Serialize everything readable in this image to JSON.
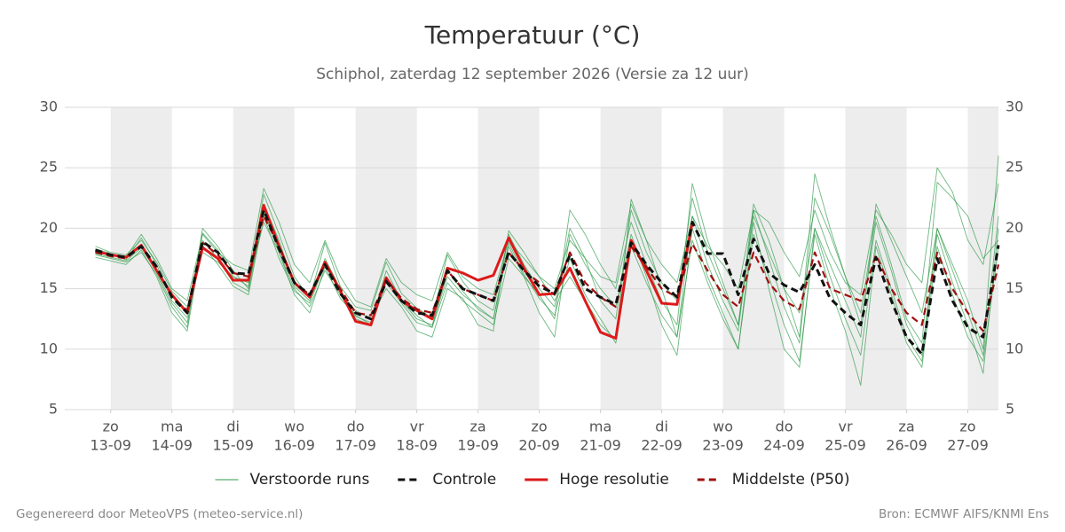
{
  "chart_data": {
    "type": "line",
    "title": "Temperatuur (°C)",
    "subtitle": "Schiphol, zaterdag 12 september 2026 (Versie za 12 uur)",
    "footer_left": "Gegenereerd door MeteoVPS (meteo-service.nl)",
    "footer_right": "Bron: ECMWF AIFS/KNMI Ens",
    "xlim": [
      -2,
      59
    ],
    "xticks": [
      {
        "value": 1,
        "label": [
          "zo",
          "13-09"
        ]
      },
      {
        "value": 5,
        "label": [
          "ma",
          "14-09"
        ]
      },
      {
        "value": 9,
        "label": [
          "di",
          "15-09"
        ]
      },
      {
        "value": 13,
        "label": [
          "wo",
          "16-09"
        ]
      },
      {
        "value": 17,
        "label": [
          "do",
          "17-09"
        ]
      },
      {
        "value": 21,
        "label": [
          "vr",
          "18-09"
        ]
      },
      {
        "value": 25,
        "label": [
          "za",
          "19-09"
        ]
      },
      {
        "value": 29,
        "label": [
          "zo",
          "20-09"
        ]
      },
      {
        "value": 33,
        "label": [
          "ma",
          "21-09"
        ]
      },
      {
        "value": 37,
        "label": [
          "di",
          "22-09"
        ]
      },
      {
        "value": 41,
        "label": [
          "wo",
          "23-09"
        ]
      },
      {
        "value": 45,
        "label": [
          "do",
          "24-09"
        ]
      },
      {
        "value": 49,
        "label": [
          "vr",
          "25-09"
        ]
      },
      {
        "value": 53,
        "label": [
          "za",
          "26-09"
        ]
      },
      {
        "value": 57,
        "label": [
          "zo",
          "27-09"
        ]
      }
    ],
    "ylim": [
      5,
      30
    ],
    "yticks": [
      5,
      10,
      15,
      20,
      25,
      30
    ],
    "grid": true,
    "series": [
      {
        "name": "Verstoorde runs",
        "color": "#2e9a48",
        "runs": [
          [
            18.3,
            17.9,
            17.4,
            19.2,
            17.0,
            14.0,
            12.6,
            19.6,
            18.2,
            16.0,
            15.2,
            22.8,
            19.5,
            16.0,
            14.2,
            18.8,
            15.2,
            13.5,
            13.2,
            17.2,
            14.6,
            13.4,
            12.6,
            17.8,
            15.6,
            14.0,
            13.2,
            19.5,
            17.0,
            15.0,
            13.5,
            20.0,
            17.5,
            14.0,
            12.5,
            21.5,
            18.0,
            15.5,
            14.0,
            22.5,
            18.0,
            15.0,
            12.0,
            21.0,
            18.0,
            15.0,
            11.0,
            24.5,
            20.0,
            16.0,
            13.0,
            21.0,
            17.0,
            12.5,
            10.5,
            23.8,
            22.5,
            21.0,
            17.5,
            19.0
          ],
          [
            17.8,
            17.5,
            17.2,
            18.0,
            16.2,
            13.5,
            11.8,
            20.0,
            18.5,
            16.5,
            15.0,
            22.0,
            19.0,
            15.2,
            14.0,
            17.5,
            15.0,
            12.5,
            12.0,
            16.0,
            14.0,
            12.8,
            11.8,
            15.5,
            14.0,
            13.0,
            12.0,
            17.5,
            16.0,
            14.5,
            12.5,
            21.5,
            19.5,
            17.0,
            15.0,
            20.5,
            17.0,
            14.0,
            12.0,
            23.7,
            19.0,
            15.5,
            12.0,
            22.0,
            19.0,
            15.0,
            13.0,
            20.0,
            17.0,
            14.0,
            11.0,
            22.0,
            19.0,
            16.0,
            13.0,
            20.0,
            17.0,
            14.0,
            10.0,
            26.0
          ],
          [
            18.5,
            18.0,
            17.8,
            19.0,
            17.2,
            14.8,
            13.5,
            18.0,
            17.2,
            16.0,
            15.5,
            20.5,
            18.0,
            15.0,
            13.5,
            16.5,
            14.5,
            13.2,
            12.5,
            15.0,
            13.5,
            11.5,
            11.0,
            15.0,
            14.2,
            12.0,
            11.5,
            19.8,
            18.0,
            16.0,
            14.0,
            16.0,
            14.0,
            12.0,
            10.8,
            22.4,
            19.0,
            15.0,
            11.0,
            21.0,
            17.0,
            14.0,
            11.5,
            21.5,
            17.5,
            13.5,
            10.5,
            22.5,
            19.5,
            16.0,
            12.0,
            20.5,
            16.5,
            12.0,
            9.5,
            20.0,
            16.5,
            13.0,
            9.5,
            21.0
          ],
          [
            17.6,
            17.3,
            17.0,
            18.2,
            16.0,
            13.0,
            11.5,
            19.0,
            17.5,
            15.5,
            14.8,
            21.5,
            18.0,
            14.5,
            13.0,
            16.8,
            14.2,
            12.8,
            12.0,
            16.5,
            14.0,
            12.5,
            12.0,
            16.0,
            14.5,
            13.5,
            12.5,
            18.5,
            16.0,
            13.0,
            11.0,
            19.5,
            17.0,
            15.0,
            13.5,
            19.5,
            16.0,
            12.0,
            9.5,
            20.0,
            16.0,
            13.0,
            10.0,
            20.5,
            15.0,
            10.0,
            8.5,
            20.0,
            16.0,
            12.5,
            9.5,
            19.0,
            15.0,
            11.0,
            9.0,
            19.5,
            15.5,
            12.0,
            8.0,
            20.0
          ],
          [
            18.2,
            17.8,
            17.6,
            19.5,
            17.5,
            15.0,
            14.0,
            19.5,
            18.0,
            17.0,
            16.5,
            23.3,
            20.5,
            17.0,
            15.5,
            19.0,
            16.0,
            14.0,
            13.5,
            17.5,
            15.5,
            14.5,
            14.0,
            18.0,
            16.0,
            15.0,
            14.5,
            19.0,
            17.5,
            16.0,
            15.0,
            19.0,
            17.5,
            16.0,
            15.5,
            22.0,
            19.0,
            17.0,
            15.5,
            21.0,
            18.5,
            17.0,
            15.0,
            21.5,
            20.5,
            18.0,
            16.0,
            21.5,
            18.0,
            15.5,
            14.5,
            21.5,
            19.5,
            17.0,
            15.5,
            25.0,
            23.0,
            19.0,
            17.0,
            23.7
          ],
          [
            17.9,
            17.6,
            17.3,
            18.4,
            16.4,
            13.8,
            12.2,
            18.6,
            17.0,
            15.2,
            14.5,
            21.0,
            17.5,
            14.8,
            13.8,
            17.0,
            14.8,
            12.7,
            12.2,
            15.5,
            13.8,
            12.2,
            11.8,
            16.5,
            14.8,
            13.3,
            12.5,
            18.8,
            16.2,
            14.2,
            12.8,
            17.5,
            14.5,
            12.5,
            10.5,
            18.5,
            15.5,
            12.8,
            11.0,
            19.0,
            15.5,
            12.5,
            10.0,
            19.5,
            16.0,
            12.0,
            9.0,
            19.5,
            15.0,
            11.5,
            7.0,
            18.5,
            14.5,
            10.5,
            8.5,
            18.5,
            14.5,
            11.0,
            9.0,
            18.5
          ]
        ]
      },
      {
        "name": "Controle",
        "color": "#111111",
        "dashed": true,
        "values": [
          18.2,
          17.8,
          17.6,
          18.5,
          16.8,
          14.3,
          13.0,
          18.9,
          18.0,
          16.3,
          16.2,
          21.5,
          18.3,
          15.5,
          14.5,
          17.0,
          14.6,
          13.0,
          12.5,
          15.6,
          14.0,
          13.0,
          12.8,
          16.5,
          15.0,
          14.5,
          14.0,
          18.0,
          16.5,
          15.2,
          14.6,
          17.8,
          15.0,
          14.3,
          13.7,
          18.8,
          17.0,
          15.5,
          14.3,
          20.5,
          17.9,
          17.9,
          14.5,
          19.1,
          16.3,
          15.3,
          14.7,
          17.0,
          14.2,
          13.0,
          12.0,
          17.6,
          14.0,
          11.0,
          9.6,
          17.5,
          14.0,
          11.8,
          11.0,
          18.6
        ]
      },
      {
        "name": "Hoge resolutie",
        "color": "#dd1a1a",
        "values": [
          18.1,
          17.8,
          17.6,
          18.6,
          16.5,
          14.5,
          13.0,
          18.4,
          17.5,
          15.7,
          15.7,
          21.9,
          18.5,
          15.5,
          14.3,
          17.2,
          14.8,
          12.3,
          12.0,
          15.9,
          14.0,
          13.2,
          12.5,
          16.7,
          16.3,
          15.7,
          16.1,
          19.2,
          16.7,
          14.5,
          14.6,
          16.7,
          14.0,
          11.4,
          10.9,
          19.0,
          16.5,
          13.8,
          13.7,
          20.5,
          null,
          null,
          null,
          null,
          null,
          null,
          null,
          null,
          null,
          null,
          null,
          null,
          null,
          null,
          null,
          null,
          null,
          null,
          null,
          null
        ]
      },
      {
        "name": "Middelste (P50)",
        "color": "#a01010",
        "dashed": true,
        "values": [
          18.0,
          17.7,
          17.5,
          18.5,
          16.8,
          14.3,
          13.2,
          18.8,
          17.8,
          16.3,
          16.0,
          21.0,
          18.5,
          15.5,
          14.5,
          17.0,
          15.0,
          13.0,
          12.8,
          15.8,
          14.2,
          13.3,
          13.0,
          16.5,
          15.0,
          14.5,
          14.0,
          18.0,
          16.5,
          15.5,
          14.5,
          18.0,
          15.5,
          14.3,
          13.5,
          18.5,
          16.8,
          15.0,
          14.3,
          18.7,
          16.5,
          14.5,
          13.5,
          18.0,
          15.5,
          14.0,
          13.3,
          18.0,
          15.0,
          14.5,
          14.0,
          17.8,
          15.0,
          13.0,
          12.0,
          18.0,
          15.0,
          13.0,
          11.5,
          17.0
        ]
      }
    ]
  }
}
